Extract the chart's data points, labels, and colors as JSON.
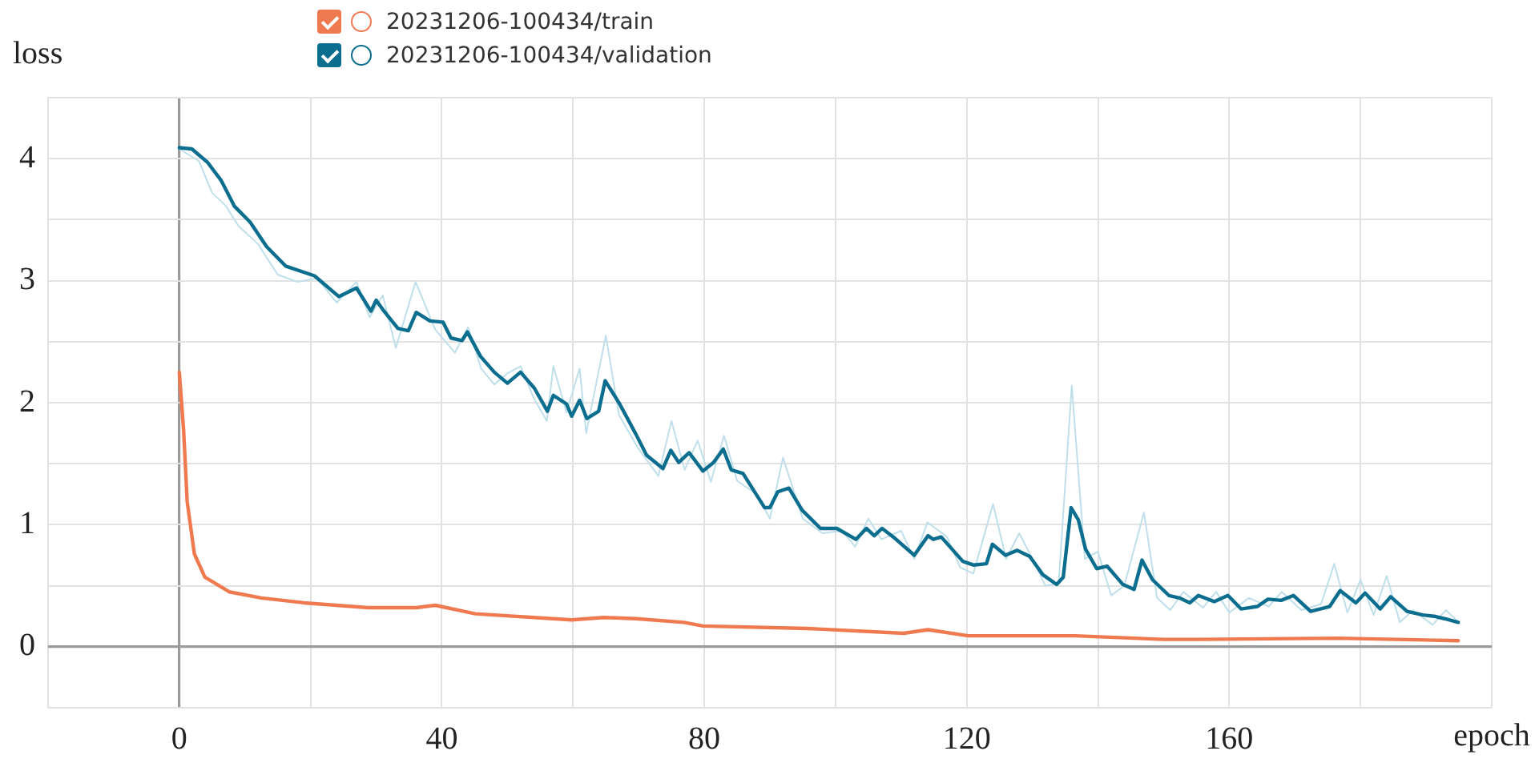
{
  "chart_data": {
    "type": "line",
    "xlabel": "epoch",
    "ylabel": "loss",
    "xlim": [
      -20,
      200
    ],
    "ylim": [
      -0.5,
      4.5
    ],
    "xticks": [
      {
        "value": -20,
        "label": null
      },
      0,
      {
        "value": 20,
        "label": null
      },
      40,
      {
        "value": 60,
        "label": null
      },
      80,
      {
        "value": 100,
        "label": null
      },
      120,
      {
        "value": 140,
        "label": null
      },
      160,
      {
        "value": 180,
        "label": null
      },
      {
        "value": 200,
        "label": null
      }
    ],
    "yticks": [
      {
        "value": -0.5,
        "label": null
      },
      0,
      {
        "value": 0.5,
        "label": null
      },
      1,
      {
        "value": 1.5,
        "label": null
      },
      2,
      {
        "value": 2.5,
        "label": null
      },
      3,
      {
        "value": 3.5,
        "label": null
      },
      4,
      {
        "value": 4.5,
        "label": null
      }
    ],
    "grid": true,
    "legend": "top",
    "line_style": "solid",
    "marker": "none",
    "series": [
      {
        "color": "#bfdfea",
        "x": [
          0,
          3,
          5,
          7,
          9,
          12,
          15,
          18,
          21,
          24,
          27,
          29,
          31,
          33,
          36,
          39,
          42,
          44,
          46,
          48,
          50,
          52,
          54,
          56,
          57,
          59,
          61,
          62,
          65,
          67,
          70,
          73,
          75,
          77,
          79,
          81,
          83,
          85,
          88,
          90,
          92,
          95,
          98,
          101,
          103,
          105,
          107,
          110,
          112,
          114,
          117,
          119,
          121,
          124,
          126,
          128,
          130,
          132,
          134,
          136,
          138,
          140,
          142,
          144,
          147,
          149,
          151,
          153,
          156,
          158,
          160,
          163,
          166,
          168,
          171,
          174,
          176,
          178,
          180,
          182,
          184,
          186,
          188,
          191,
          193,
          195
        ],
        "values": [
          4.08,
          3.98,
          3.72,
          3.62,
          3.45,
          3.3,
          3.05,
          2.99,
          3.02,
          2.82,
          2.99,
          2.7,
          2.88,
          2.45,
          2.99,
          2.6,
          2.41,
          2.62,
          2.28,
          2.15,
          2.24,
          2.3,
          2.04,
          1.85,
          2.3,
          1.92,
          2.28,
          1.75,
          2.55,
          1.9,
          1.62,
          1.4,
          1.85,
          1.45,
          1.69,
          1.35,
          1.73,
          1.36,
          1.25,
          1.05,
          1.55,
          1.05,
          0.93,
          0.95,
          0.82,
          1.05,
          0.88,
          0.95,
          0.72,
          1.02,
          0.9,
          0.65,
          0.6,
          1.17,
          0.72,
          0.93,
          0.72,
          0.5,
          0.52,
          2.14,
          0.72,
          0.78,
          0.42,
          0.5,
          1.1,
          0.4,
          0.3,
          0.45,
          0.32,
          0.45,
          0.28,
          0.4,
          0.33,
          0.45,
          0.3,
          0.35,
          0.68,
          0.28,
          0.55,
          0.26,
          0.58,
          0.2,
          0.3,
          0.18,
          0.3,
          0.2
        ]
      },
      {
        "name": "20231206-100434/train",
        "color": "#f07a50",
        "x": [
          0,
          0.65,
          1.2,
          2.3,
          3.9,
          7.6,
          12.5,
          19,
          28.8,
          36.1,
          39,
          45.1,
          59.8,
          64.7,
          69.6,
          76.9,
          79.8,
          95.7,
          110.4,
          114.1,
          120.2,
          136.5,
          150,
          155.3,
          176.5,
          194.9
        ],
        "values": [
          2.25,
          1.78,
          1.19,
          0.76,
          0.57,
          0.45,
          0.4,
          0.36,
          0.32,
          0.32,
          0.34,
          0.27,
          0.22,
          0.24,
          0.23,
          0.2,
          0.17,
          0.15,
          0.11,
          0.14,
          0.09,
          0.09,
          0.06,
          0.06,
          0.07,
          0.05
        ]
      },
      {
        "name": "20231206-100434/validation",
        "color": "#0b6e8e",
        "x": [
          0,
          1.9,
          4.3,
          6.4,
          8.4,
          10.8,
          13.3,
          16.2,
          20.6,
          24.3,
          27,
          29.2,
          30,
          31.2,
          33.3,
          34.9,
          36.1,
          38.2,
          40.2,
          41.4,
          43.1,
          43.9,
          45.9,
          48,
          50,
          52,
          54.1,
          56.1,
          57,
          59,
          59.8,
          61,
          62.1,
          63.9,
          64.9,
          67.1,
          69.6,
          71.2,
          73.7,
          74.9,
          76.1,
          77.7,
          79.8,
          81.4,
          82.9,
          84.1,
          85.9,
          89.2,
          90,
          91.2,
          92.9,
          94.9,
          97.7,
          100.2,
          103.1,
          104.7,
          105.9,
          107.1,
          108.8,
          112,
          114.1,
          114.9,
          116.1,
          119.4,
          121,
          123,
          123.9,
          125.9,
          127.7,
          129.6,
          131.6,
          133.7,
          134.7,
          135.9,
          137,
          138.1,
          139.8,
          141.4,
          143.8,
          145.5,
          146.7,
          148.3,
          150.8,
          152.4,
          154,
          155.3,
          157.7,
          159.8,
          161.8,
          164.3,
          165.9,
          167.9,
          169.8,
          172.4,
          175.3,
          176.9,
          179.3,
          180.7,
          183,
          184.6,
          187.1,
          189.5,
          191.2,
          192.8,
          194.9
        ],
        "values": [
          4.09,
          4.08,
          3.97,
          3.82,
          3.61,
          3.48,
          3.28,
          3.12,
          3.04,
          2.87,
          2.94,
          2.75,
          2.84,
          2.75,
          2.61,
          2.59,
          2.74,
          2.67,
          2.66,
          2.53,
          2.51,
          2.58,
          2.38,
          2.25,
          2.16,
          2.25,
          2.12,
          1.93,
          2.06,
          1.99,
          1.89,
          2.02,
          1.87,
          1.93,
          2.18,
          1.99,
          1.74,
          1.57,
          1.46,
          1.61,
          1.51,
          1.59,
          1.44,
          1.51,
          1.62,
          1.45,
          1.42,
          1.14,
          1.14,
          1.27,
          1.3,
          1.12,
          0.97,
          0.97,
          0.88,
          0.97,
          0.91,
          0.97,
          0.9,
          0.75,
          0.91,
          0.88,
          0.9,
          0.7,
          0.67,
          0.68,
          0.84,
          0.75,
          0.79,
          0.74,
          0.59,
          0.51,
          0.57,
          1.14,
          1.04,
          0.8,
          0.64,
          0.66,
          0.51,
          0.47,
          0.71,
          0.55,
          0.42,
          0.4,
          0.36,
          0.42,
          0.37,
          0.42,
          0.31,
          0.33,
          0.39,
          0.38,
          0.42,
          0.29,
          0.33,
          0.46,
          0.36,
          0.44,
          0.31,
          0.41,
          0.29,
          0.26,
          0.25,
          0.23,
          0.2
        ]
      }
    ]
  }
}
